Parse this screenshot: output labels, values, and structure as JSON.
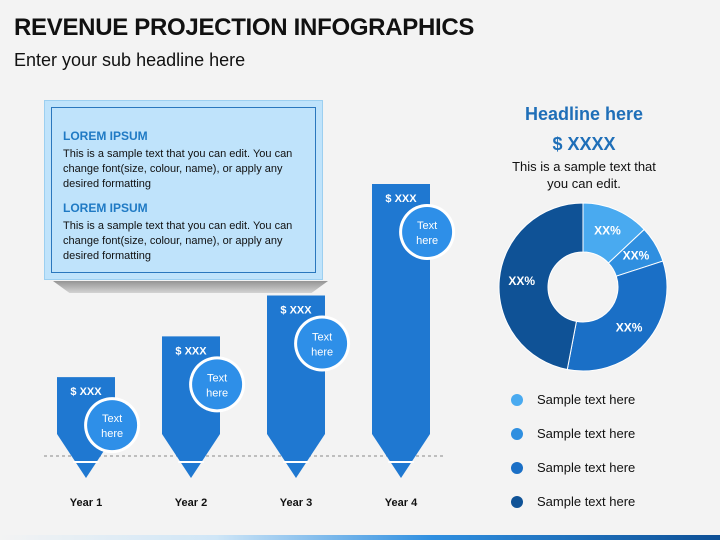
{
  "header": {
    "title": "REVENUE PROJECTION INFOGRAPHICS",
    "subtitle": "Enter your sub headline here"
  },
  "textbox": {
    "blocks": [
      {
        "heading": "LOREM IPSUM",
        "text": "This is a sample text that you can edit. You can change font(size, colour, name), or apply any desired formatting"
      },
      {
        "heading": "LOREM IPSUM",
        "text": "This is a sample text that you can edit. You can change font(size, colour, name), or apply any desired formatting"
      }
    ]
  },
  "right_panel": {
    "headline": "Headline here",
    "value": "$ XXXX",
    "description": "This is a sample text that you can edit."
  },
  "colors": {
    "bar": "#1f78d1",
    "circle_fill": "#2e8fe8",
    "donut": [
      "#49aaf0",
      "#2f8fe0",
      "#1a6fc6",
      "#0f5296"
    ]
  },
  "chart_data": [
    {
      "type": "bar",
      "categories": [
        "Year 1",
        "Year 2",
        "Year 3",
        "Year 4"
      ],
      "value_labels": [
        "$ XXX",
        "$ XXX",
        "$ XXX",
        "$ XXX"
      ],
      "relative_heights": [
        0.29,
        0.44,
        0.59,
        1.0
      ],
      "callouts": [
        "Text\nhere",
        "Text\nhere",
        "Text\nhere",
        "Text\nhere"
      ]
    },
    {
      "type": "pie",
      "labels": [
        "XX%",
        "XX%",
        "XX%",
        "XX%"
      ],
      "values": [
        13,
        7,
        33,
        47
      ],
      "legend": [
        "Sample text here",
        "Sample text here",
        "Sample text here",
        "Sample text here"
      ]
    }
  ]
}
